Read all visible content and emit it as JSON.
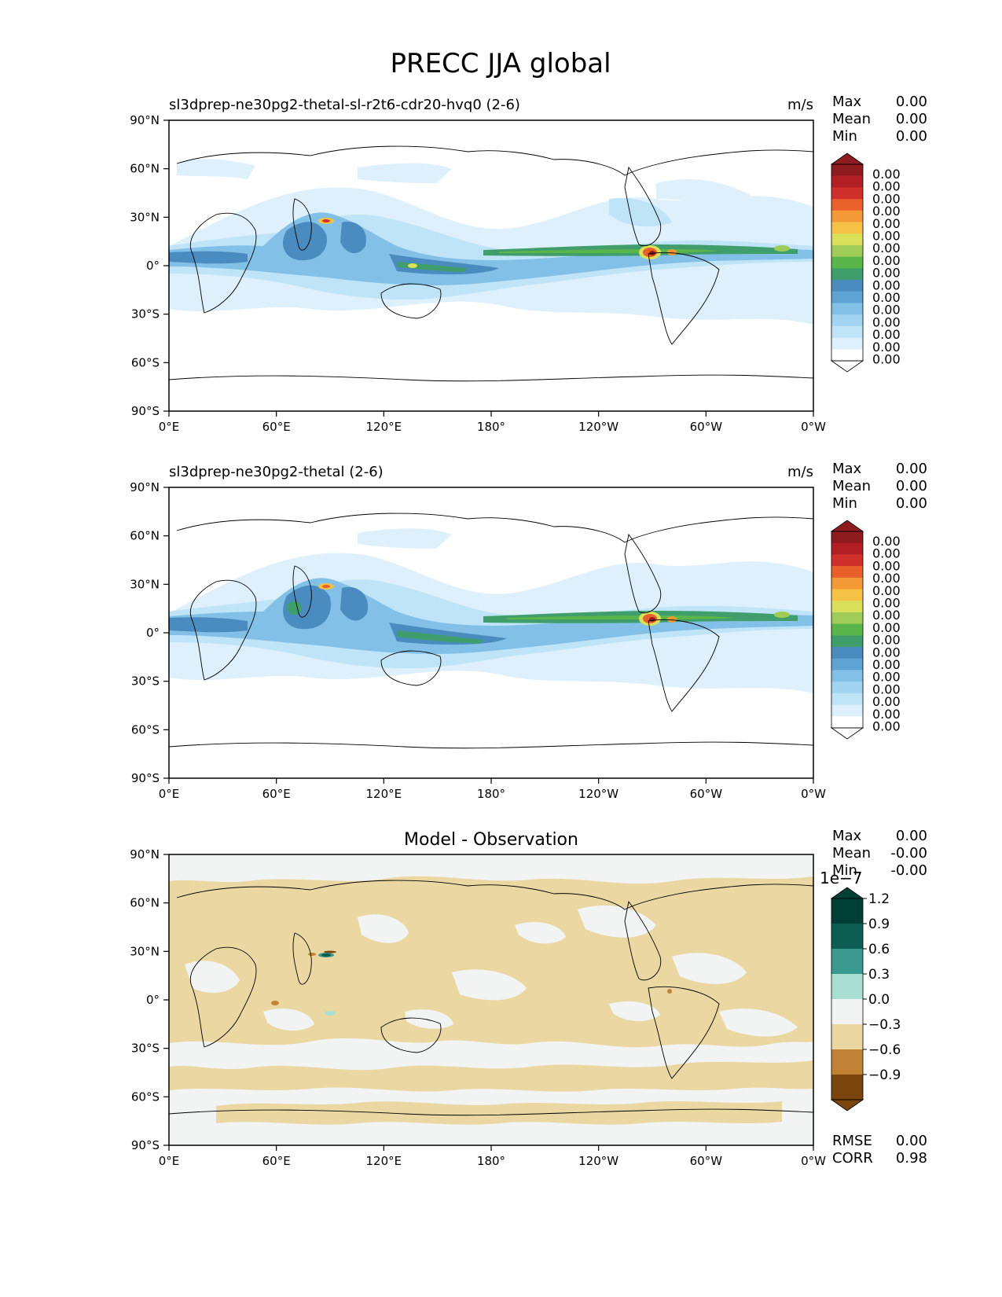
{
  "figure": {
    "title": "PRECC JJA global"
  },
  "axes": {
    "lat_ticks": [
      "90°N",
      "60°N",
      "30°N",
      "0°",
      "30°S",
      "60°S",
      "90°S"
    ],
    "lon_ticks": [
      "0°E",
      "60°E",
      "120°E",
      "180°",
      "120°W",
      "60°W",
      "0°W"
    ]
  },
  "panels": [
    {
      "id": "test",
      "subtitle": "sl3dprep-ne30pg2-thetal-sl-r2t6-cdr20-hvq0 (2-6)",
      "units": "m/s",
      "stats": [
        {
          "label": "Max",
          "value": "0.00"
        },
        {
          "label": "Mean",
          "value": "0.00"
        },
        {
          "label": "Min",
          "value": "0.00"
        }
      ],
      "colorbar_labels": [
        "0.00",
        "0.00",
        "0.00",
        "0.00",
        "0.00",
        "0.00",
        "0.00",
        "0.00",
        "0.00",
        "0.00",
        "0.00",
        "0.00",
        "0.00",
        "0.00",
        "0.00",
        "0.00"
      ]
    },
    {
      "id": "reference",
      "subtitle": "sl3dprep-ne30pg2-thetal (2-6)",
      "units": "m/s",
      "stats": [
        {
          "label": "Max",
          "value": "0.00"
        },
        {
          "label": "Mean",
          "value": "0.00"
        },
        {
          "label": "Min",
          "value": "0.00"
        }
      ],
      "colorbar_labels": [
        "0.00",
        "0.00",
        "0.00",
        "0.00",
        "0.00",
        "0.00",
        "0.00",
        "0.00",
        "0.00",
        "0.00",
        "0.00",
        "0.00",
        "0.00",
        "0.00",
        "0.00",
        "0.00"
      ]
    },
    {
      "id": "difference",
      "title": "Model - Observation",
      "stats": [
        {
          "label": "Max",
          "value": "0.00"
        },
        {
          "label": "Mean",
          "value": "-0.00"
        },
        {
          "label": "Min",
          "value": "-0.00"
        }
      ],
      "colorbar_scale": "1e−7",
      "colorbar_labels": [
        "1.2",
        "0.9",
        "0.6",
        "0.3",
        "0.0",
        "−0.3",
        "−0.6",
        "−0.9"
      ],
      "metrics": [
        {
          "label": "RMSE",
          "value": "0.00"
        },
        {
          "label": "CORR",
          "value": "0.98"
        }
      ]
    }
  ],
  "colors": {
    "precip_scale": [
      "#ffffff",
      "#ddf0fb",
      "#bfe3f7",
      "#a2d4f1",
      "#82c0e8",
      "#5ea3d3",
      "#4a8cc0",
      "#3f9e6c",
      "#5ab54a",
      "#9fcd57",
      "#dbe05a",
      "#f6c246",
      "#f39a36",
      "#e9602d",
      "#d0302b",
      "#b11f24",
      "#8e1b1e"
    ],
    "diff_scale": [
      "#7a450d",
      "#c18434",
      "#ead7a2",
      "#f2f4f4",
      "#a9dfd3",
      "#3a9a90",
      "#0b5e51",
      "#003f35"
    ],
    "land_outline": "#000000"
  }
}
